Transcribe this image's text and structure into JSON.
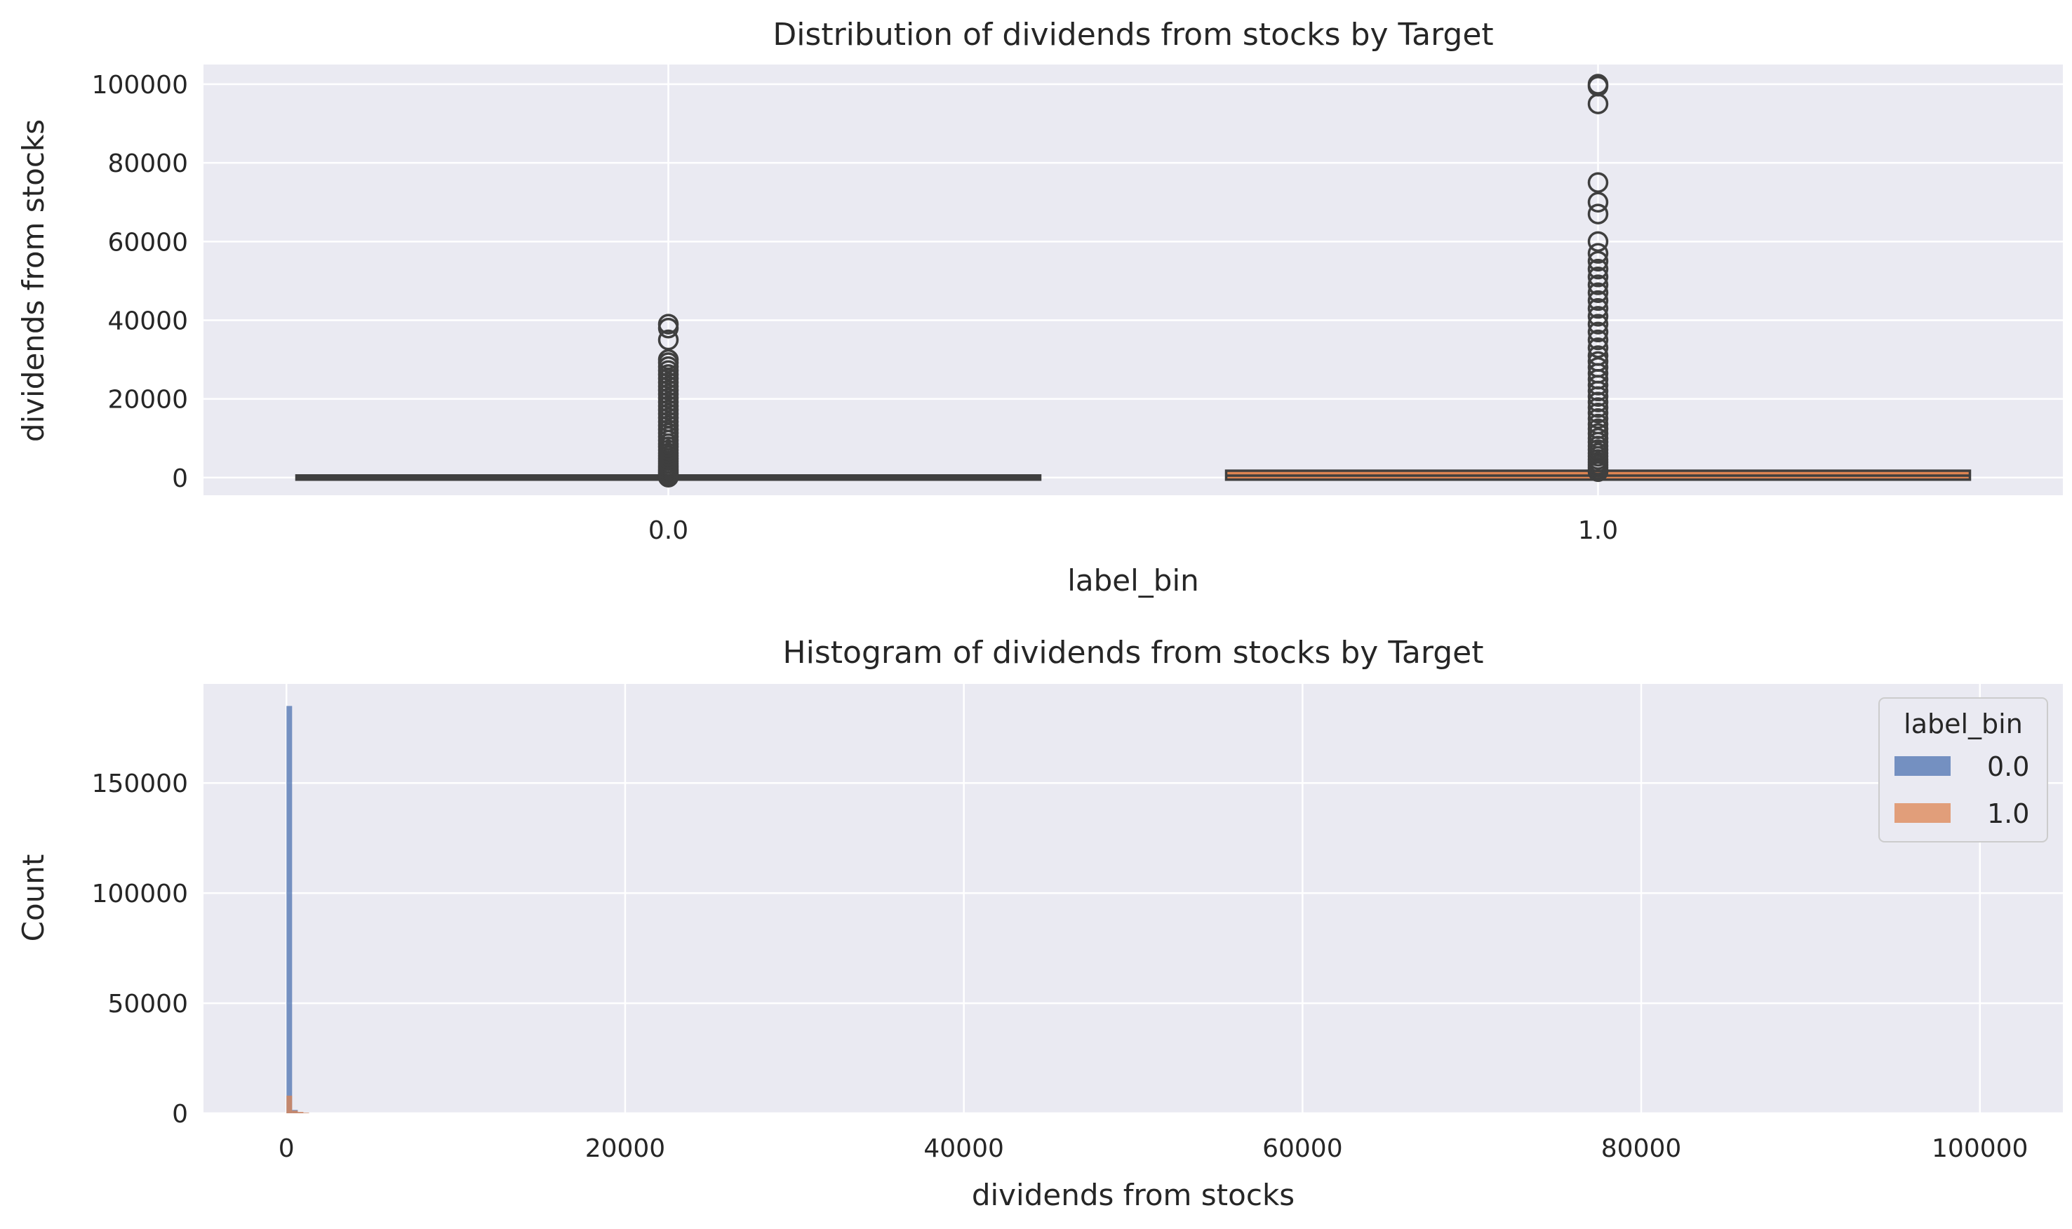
{
  "colors": {
    "plot_bg": "#eaeaf2",
    "grid": "#ffffff",
    "box_line": "#3f3f3f",
    "series_0": "#4c72b0",
    "series_1": "#dd8452"
  },
  "chart_data": [
    {
      "type": "box",
      "title": "Distribution of dividends from stocks by Target",
      "xlabel": "label_bin",
      "ylabel": "dividends from stocks",
      "categories": [
        "0.0",
        "1.0"
      ],
      "ylim": [
        -4500,
        105000
      ],
      "yticks": [
        0,
        20000,
        40000,
        60000,
        80000,
        100000
      ],
      "grid": true,
      "boxes": [
        {
          "category": "0.0",
          "q1": 0,
          "median": 0,
          "q3": 0,
          "whisker_low": 0,
          "whisker_high": 0,
          "outliers": [
            100,
            300,
            500,
            800,
            1200,
            1600,
            2000,
            2500,
            3000,
            3600,
            4200,
            4800,
            5500,
            6200,
            7000,
            7800,
            8600,
            9500,
            10400,
            11300,
            12200,
            13200,
            14200,
            15200,
            16200,
            17200,
            18200,
            19200,
            20200,
            21200,
            22200,
            23200,
            24200,
            25200,
            26200,
            27200,
            28200,
            29200,
            30000,
            35000,
            38000,
            39000
          ]
        },
        {
          "category": "1.0",
          "q1": 0,
          "median": 500,
          "q3": 1200,
          "whisker_low": 0,
          "whisker_high": 1200,
          "outliers": [
            1500,
            2000,
            2600,
            3200,
            3900,
            4600,
            5400,
            6200,
            7100,
            8000,
            9000,
            10000,
            11200,
            12400,
            13600,
            15000,
            16400,
            17800,
            19200,
            20600,
            22000,
            23500,
            25000,
            26500,
            28000,
            29500,
            31000,
            33000,
            35000,
            37000,
            39000,
            41000,
            43000,
            45000,
            47000,
            49000,
            51000,
            53000,
            55000,
            57000,
            60000,
            67000,
            70000,
            75000,
            95000,
            99500,
            100000
          ]
        }
      ]
    },
    {
      "type": "histogram",
      "title": "Histogram of dividends from stocks by Target",
      "xlabel": "dividends from stocks",
      "ylabel": "Count",
      "xlim": [
        -4900,
        104900
      ],
      "ylim": [
        0,
        195000
      ],
      "xticks": [
        0,
        20000,
        40000,
        60000,
        80000,
        100000
      ],
      "yticks": [
        0,
        50000,
        100000,
        150000
      ],
      "grid": true,
      "legend": {
        "title": "label_bin",
        "placement": "top-right"
      },
      "bin_width": 333,
      "series": [
        {
          "name": "0.0",
          "bins": [
            [
              0,
              185000
            ],
            [
              333,
              1500
            ],
            [
              666,
              400
            ],
            [
              1000,
              150
            ]
          ]
        },
        {
          "name": "1.0",
          "bins": [
            [
              0,
              8000
            ],
            [
              333,
              1200
            ],
            [
              666,
              600
            ],
            [
              1000,
              250
            ]
          ]
        }
      ]
    }
  ]
}
